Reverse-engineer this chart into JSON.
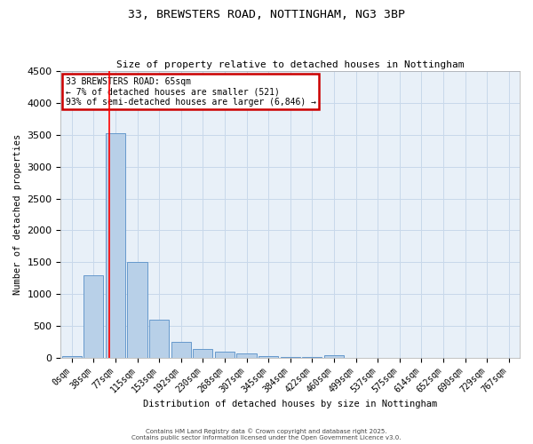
{
  "title1": "33, BREWSTERS ROAD, NOTTINGHAM, NG3 3BP",
  "title2": "Size of property relative to detached houses in Nottingham",
  "xlabel": "Distribution of detached houses by size in Nottingham",
  "ylabel": "Number of detached properties",
  "bar_labels": [
    "0sqm",
    "38sqm",
    "77sqm",
    "115sqm",
    "153sqm",
    "192sqm",
    "230sqm",
    "268sqm",
    "307sqm",
    "345sqm",
    "384sqm",
    "422sqm",
    "460sqm",
    "499sqm",
    "537sqm",
    "575sqm",
    "614sqm",
    "652sqm",
    "690sqm",
    "729sqm",
    "767sqm"
  ],
  "bar_values": [
    30,
    1300,
    3530,
    1500,
    600,
    250,
    130,
    100,
    60,
    20,
    10,
    5,
    40,
    0,
    0,
    0,
    0,
    0,
    0,
    0,
    0
  ],
  "bar_color": "#b8d0e8",
  "bar_edge_color": "#6699cc",
  "grid_color": "#c8d8ea",
  "bg_color": "#e8f0f8",
  "red_line_x": 1.71,
  "annotation_title": "33 BREWSTERS ROAD: 65sqm",
  "annotation_line1": "← 7% of detached houses are smaller (521)",
  "annotation_line2": "93% of semi-detached houses are larger (6,846) →",
  "annotation_box_color": "#cc0000",
  "ylim": [
    0,
    4500
  ],
  "yticks": [
    0,
    500,
    1000,
    1500,
    2000,
    2500,
    3000,
    3500,
    4000,
    4500
  ],
  "footer1": "Contains HM Land Registry data © Crown copyright and database right 2025.",
  "footer2": "Contains public sector information licensed under the Open Government Licence v3.0."
}
